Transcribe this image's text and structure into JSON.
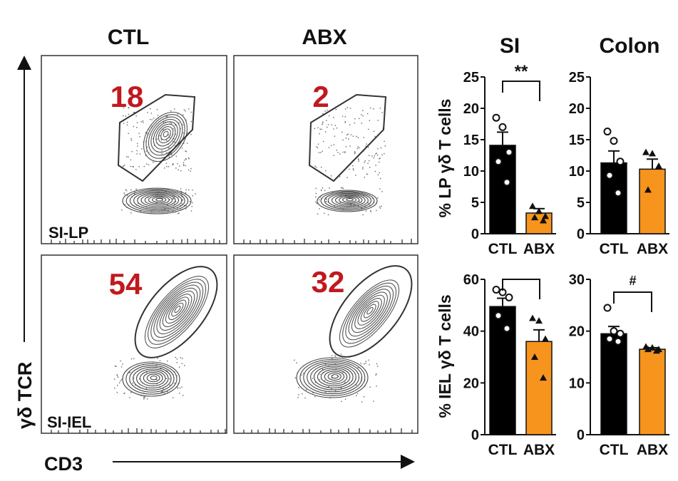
{
  "facs": {
    "columns": [
      "CTL",
      "ABX"
    ],
    "rows": [
      "SI-LP",
      "SI-IEL"
    ],
    "percentages": {
      "sild_ctl": "18",
      "sild_abx": "2",
      "siiel_ctl": "54",
      "siiel_abx": "32"
    },
    "y_axis_label": "γδ TCR",
    "x_axis_label": "CD3"
  },
  "chart_data": [
    {
      "type": "bar",
      "panel": "SI LP",
      "title": "SI",
      "ylabel": "% LP γδ T cells",
      "categories": [
        "CTL",
        "ABX"
      ],
      "values": [
        14.1,
        3.3
      ],
      "errors": [
        2.1,
        0.7
      ],
      "points": [
        [
          18.5,
          17.0,
          13.0,
          11.5,
          8.2
        ],
        [
          4.4,
          3.6,
          2.8,
          2.6,
          2.1
        ]
      ],
      "markers": [
        "circle",
        "triangle"
      ],
      "ylim": [
        0,
        25
      ],
      "yticks": [
        "0",
        "5",
        "10",
        "15",
        "20",
        "25"
      ],
      "significance": "**",
      "colors": [
        "#000000",
        "#f7941d"
      ]
    },
    {
      "type": "bar",
      "panel": "Colon LP",
      "title": "Colon",
      "ylabel": "",
      "categories": [
        "CTL",
        "ABX"
      ],
      "values": [
        11.3,
        10.3
      ],
      "errors": [
        1.9,
        1.6
      ],
      "points": [
        [
          16.3,
          14.8,
          11.5,
          9.3,
          6.5
        ],
        [
          13.0,
          12.8,
          10.8,
          7.0
        ]
      ],
      "markers": [
        "circle",
        "triangle"
      ],
      "ylim": [
        0,
        25
      ],
      "yticks": [
        "0",
        "5",
        "10",
        "15",
        "20",
        "25"
      ],
      "significance": "",
      "colors": [
        "#000000",
        "#f7941d"
      ]
    },
    {
      "type": "bar",
      "panel": "SI IEL",
      "title": "",
      "ylabel": "% IEL γδ T cells",
      "categories": [
        "CTL",
        "ABX"
      ],
      "values": [
        49.5,
        36.0
      ],
      "errors": [
        3.2,
        4.5
      ],
      "points": [
        [
          56.0,
          55.0,
          53.0,
          46.0,
          41.0
        ],
        [
          45.0,
          44.0,
          37.0,
          30.0,
          22.0
        ]
      ],
      "markers": [
        "circle",
        "triangle"
      ],
      "ylim": [
        0,
        60
      ],
      "yticks": [
        "0",
        "20",
        "40",
        "60"
      ],
      "significance": "",
      "colors": [
        "#000000",
        "#f7941d"
      ]
    },
    {
      "type": "bar",
      "panel": "Colon IEL",
      "title": "",
      "ylabel": "",
      "categories": [
        "CTL",
        "ABX"
      ],
      "values": [
        19.5,
        16.5
      ],
      "errors": [
        1.4,
        0.3
      ],
      "points": [
        [
          24.5,
          20.0,
          19.5,
          18.5,
          18.0
        ],
        [
          17.0,
          16.8,
          16.5,
          16.5,
          16.2
        ]
      ],
      "markers": [
        "circle",
        "triangle"
      ],
      "ylim": [
        0,
        30
      ],
      "yticks": [
        "0",
        "10",
        "20",
        "30"
      ],
      "significance": "#",
      "colors": [
        "#000000",
        "#f7941d"
      ]
    }
  ]
}
